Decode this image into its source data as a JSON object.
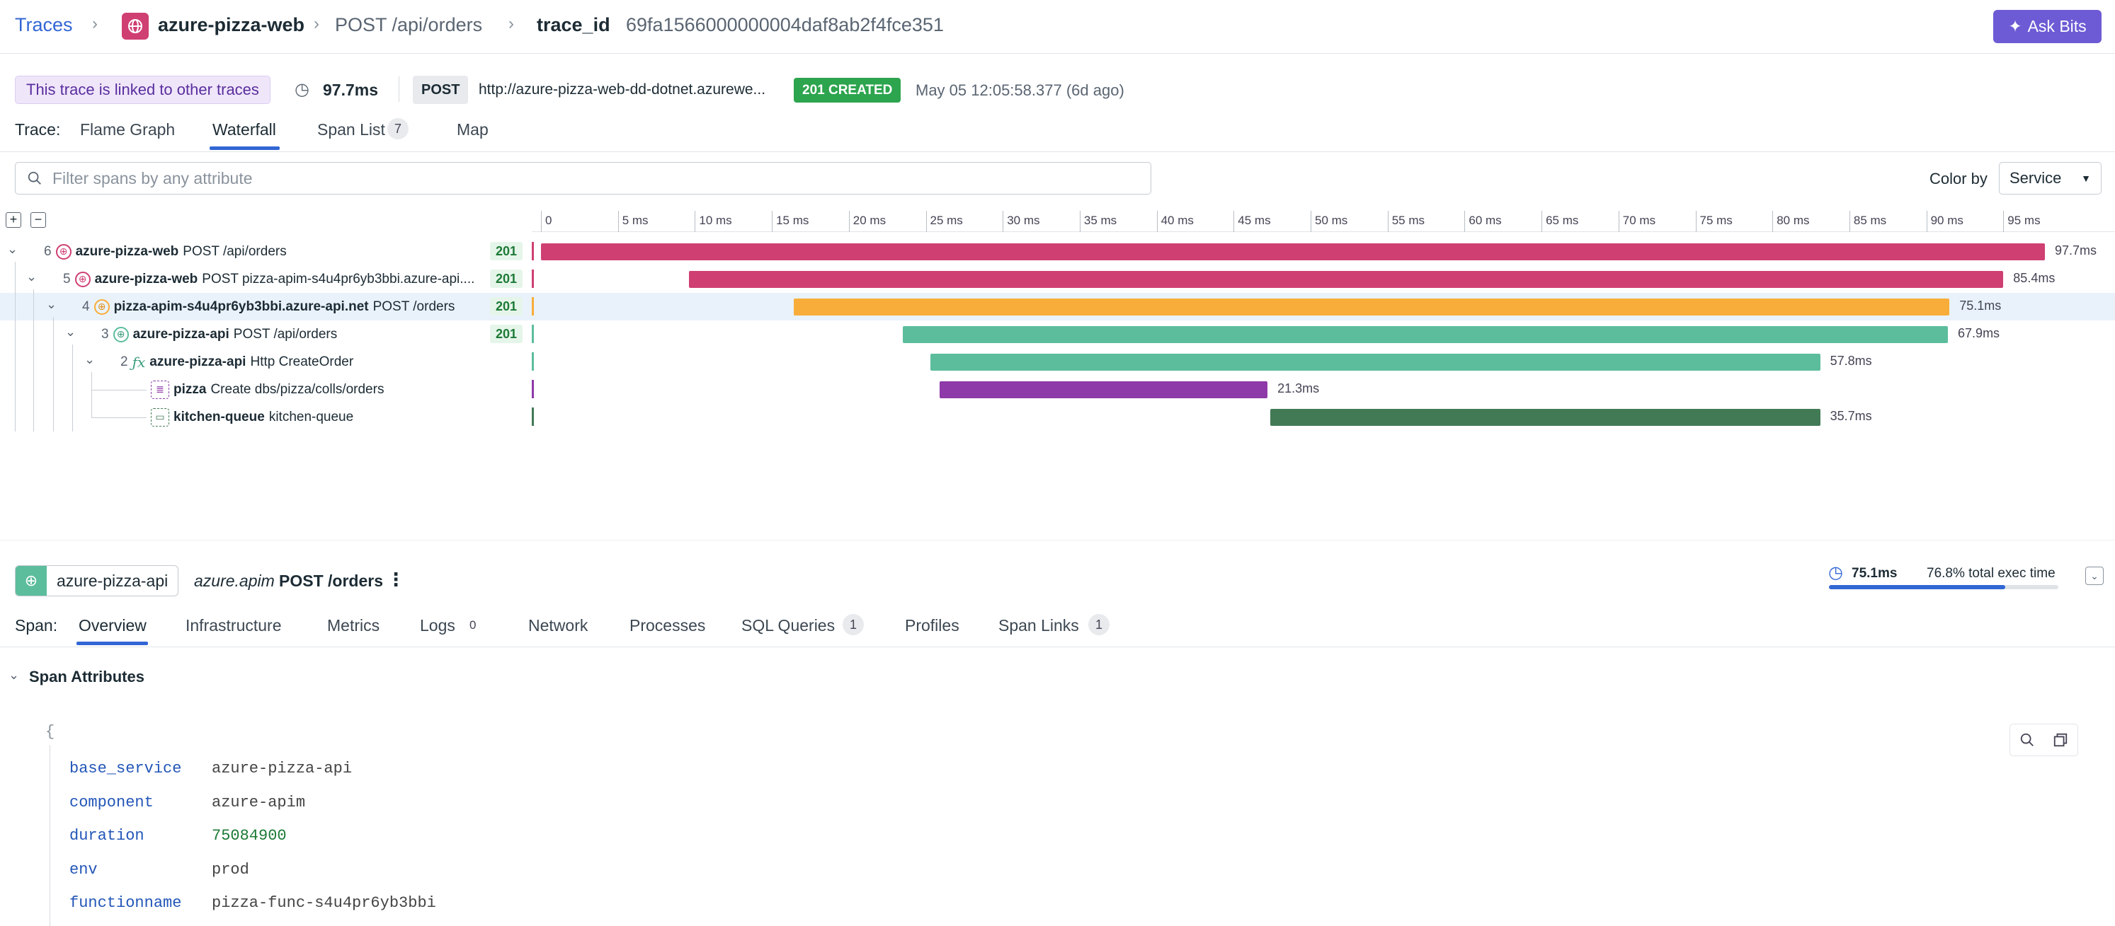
{
  "header": {
    "breadcrumb_traces": "Traces",
    "service": "azure-pizza-web",
    "resource": "POST /api/orders",
    "trace_id_label": "trace_id",
    "trace_id": "69fa1566000000004daf8ab2f4fce351",
    "ask_bits": "Ask Bits"
  },
  "summary": {
    "linked_badge": "This trace is linked to other traces",
    "duration": "97.7ms",
    "method": "POST",
    "url": "http://azure-pizza-web-dd-dotnet.azurewe...",
    "status": "201 CREATED",
    "timestamp": "May 05 12:05:58.377 (6d ago)"
  },
  "trace_tabs": {
    "label": "Trace:",
    "flame": "Flame Graph",
    "waterfall": "Waterfall",
    "span_list": "Span List",
    "span_count": "7",
    "map": "Map"
  },
  "filter": {
    "placeholder": "Filter spans by any attribute"
  },
  "color_by": {
    "label": "Color by",
    "value": "Service"
  },
  "timeline_ticks": [
    "0",
    "5 ms",
    "10 ms",
    "15 ms",
    "20 ms",
    "25 ms",
    "30 ms",
    "35 ms",
    "40 ms",
    "45 ms",
    "50 ms",
    "55 ms",
    "60 ms",
    "65 ms",
    "70 ms",
    "75 ms",
    "80 ms",
    "85 ms",
    "90 ms",
    "95 ms"
  ],
  "spans": [
    {
      "count": "6",
      "service": "azure-pizza-web",
      "resource": "POST /api/orders",
      "code": "201",
      "start_ms": 0,
      "duration_ms": 97.7,
      "duration": "97.7ms",
      "color": "#cf3f72"
    },
    {
      "count": "5",
      "service": "azure-pizza-web",
      "resource": "POST pizza-apim-s4u4pr6yb3bbi.azure-api....",
      "code": "201",
      "start_ms": 9.6,
      "duration_ms": 85.4,
      "duration": "85.4ms",
      "color": "#cf3f72"
    },
    {
      "count": "4",
      "service": "pizza-apim-s4u4pr6yb3bbi.azure-api.net",
      "resource": "POST /orders",
      "code": "201",
      "start_ms": 16.4,
      "duration_ms": 75.1,
      "duration": "75.1ms",
      "color": "#f8ad3a"
    },
    {
      "count": "3",
      "service": "azure-pizza-api",
      "resource": "POST /api/orders",
      "code": "201",
      "start_ms": 23.5,
      "duration_ms": 67.9,
      "duration": "67.9ms",
      "color": "#5cbd9c"
    },
    {
      "count": "2",
      "service": "azure-pizza-api",
      "resource": "Http CreateOrder",
      "code": "",
      "start_ms": 25.3,
      "duration_ms": 57.8,
      "duration": "57.8ms",
      "color": "#5cbd9c"
    },
    {
      "count": "",
      "service": "pizza",
      "resource": "Create dbs/pizza/colls/orders",
      "code": "",
      "start_ms": 25.9,
      "duration_ms": 21.3,
      "duration": "21.3ms",
      "color": "#8e3aa8"
    },
    {
      "count": "",
      "service": "kitchen-queue",
      "resource": "kitchen-queue",
      "code": "",
      "start_ms": 47.4,
      "duration_ms": 35.7,
      "duration": "35.7ms",
      "color": "#427a56"
    }
  ],
  "span_panel": {
    "service": "azure-pizza-api",
    "operation": "azure.apim",
    "resource": "POST /orders",
    "duration": "75.1ms",
    "exec_time": "76.8% total exec time",
    "exec_fraction": 0.768,
    "tabs_label": "Span:",
    "tabs": [
      "Overview",
      "Infrastructure",
      "Metrics",
      "Logs",
      "Network",
      "Processes",
      "SQL Queries",
      "Profiles",
      "Span Links"
    ],
    "logs_count": "0",
    "sql_count": "1",
    "links_count": "1"
  },
  "attributes": {
    "title": "Span Attributes",
    "open_brace": "{",
    "rows": [
      {
        "key": "base_service",
        "value": "azure-pizza-api",
        "color": "#444444"
      },
      {
        "key": "component",
        "value": "azure-apim",
        "color": "#444444"
      },
      {
        "key": "duration",
        "value": "75084900",
        "color": "#1d7a36"
      },
      {
        "key": "env",
        "value": "prod",
        "color": "#444444"
      },
      {
        "key": "functionname",
        "value": "pizza-func-s4u4pr6yb3bbi",
        "color": "#444444"
      }
    ]
  }
}
